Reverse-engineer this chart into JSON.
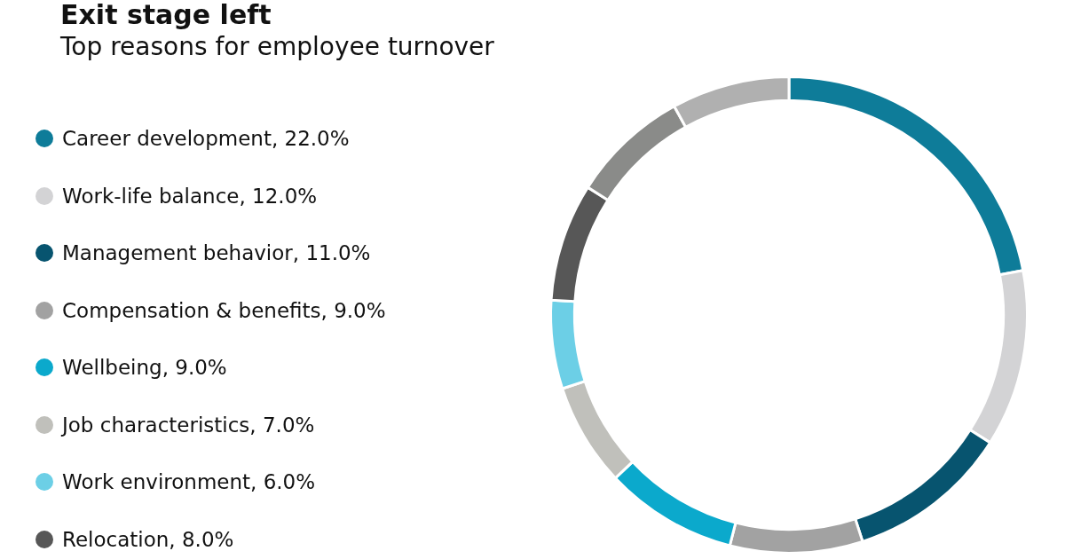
{
  "chart_data": {
    "type": "donut",
    "title": "Exit stage left",
    "subtitle": "Top reasons for employee turnover",
    "categories": [
      "Career development, 22.0%",
      "Work-life balance, 12.0%",
      "Management behavior, 11.0%",
      "Compensation & benefits, 9.0%",
      "Wellbeing, 9.0%",
      "Job characteristics, 7.0%",
      "Work environment, 6.0%",
      "Relocation, 8.0%",
      null,
      null
    ],
    "values": [
      22,
      12,
      11,
      9,
      9,
      7,
      6,
      8,
      8,
      8
    ],
    "colors": [
      "#0e7c99",
      "#d3d3d5",
      "#07546f",
      "#a2a2a2",
      "#0ba9cc",
      "#c0c0bb",
      "#6ccfe6",
      "#575757",
      "#8a8b89",
      "#b0b0b0"
    ],
    "legend": "left"
  }
}
